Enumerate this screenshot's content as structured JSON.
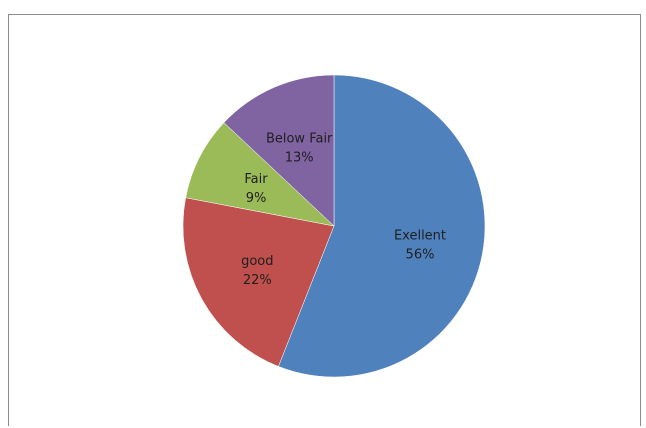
{
  "chart_data": {
    "type": "pie",
    "categories": [
      "Exellent",
      "good",
      "Fair",
      "Below Fair"
    ],
    "values": [
      56,
      22,
      9,
      13
    ],
    "labels": [
      "56%",
      "22%",
      "9%",
      "13%"
    ],
    "colors": [
      "#4f81bd",
      "#c0504d",
      "#9bbb59",
      "#8064a2"
    ],
    "start_angle_deg": 0,
    "direction": "clockwise",
    "data_labels": "inside",
    "legend": "none",
    "title": ""
  }
}
